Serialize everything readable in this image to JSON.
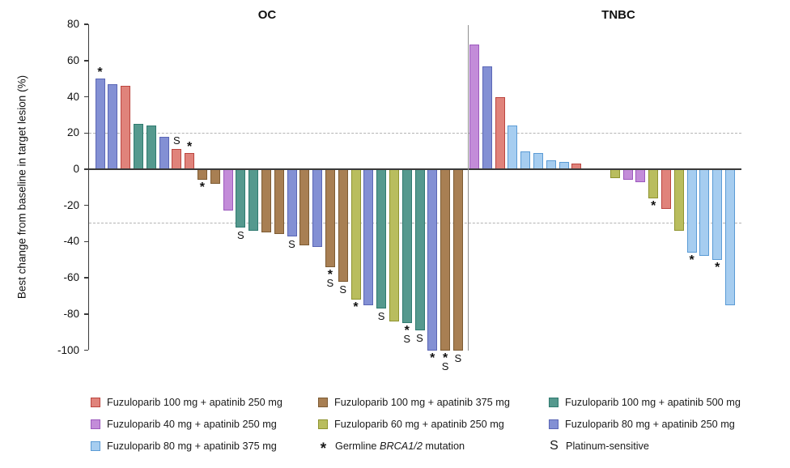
{
  "figure": {
    "ylabel": "Best change from baseline in target lesion (%)"
  },
  "colors": {
    "red": {
      "fill": "#e0837b",
      "border": "#bb453f"
    },
    "brown": {
      "fill": "#a87f53",
      "border": "#7d5b33"
    },
    "teal": {
      "fill": "#55998e",
      "border": "#2f7a6f"
    },
    "purple": {
      "fill": "#c38cd9",
      "border": "#9c59bd"
    },
    "olive": {
      "fill": "#b9bd5e",
      "border": "#8f9430"
    },
    "blueviolet": {
      "fill": "#8390d4",
      "border": "#5a66b5"
    },
    "lightblue": {
      "fill": "#a6cdf0",
      "border": "#5b9bd5"
    }
  },
  "chart_data": {
    "type": "bar",
    "ylabel": "Best change from baseline in target lesion (%)",
    "ylim": [
      -100,
      80
    ],
    "yticks": [
      80,
      60,
      40,
      20,
      0,
      -20,
      -40,
      -60,
      -80,
      -100
    ],
    "reference_lines_pct": [
      20,
      -30
    ],
    "grid": false,
    "marker_meanings": {
      "*": "Germline BRCA1/2 mutation",
      "S": "Platinum-sensitive"
    },
    "panels": [
      {
        "title": "OC",
        "bars": [
          {
            "v": 50,
            "c": "blueviolet",
            "m": [
              "*"
            ]
          },
          {
            "v": 47,
            "c": "blueviolet"
          },
          {
            "v": 46,
            "c": "red"
          },
          {
            "v": 25,
            "c": "teal"
          },
          {
            "v": 24,
            "c": "teal"
          },
          {
            "v": 18,
            "c": "blueviolet"
          },
          {
            "v": 11,
            "c": "red",
            "m": [
              "S"
            ]
          },
          {
            "v": 9,
            "c": "red",
            "m": [
              "*"
            ]
          },
          {
            "v": -6,
            "c": "brown",
            "m": [
              "*"
            ]
          },
          {
            "v": -8,
            "c": "brown"
          },
          {
            "v": -23,
            "c": "purple"
          },
          {
            "v": -32,
            "c": "teal",
            "m": [
              "S"
            ]
          },
          {
            "v": -34,
            "c": "teal"
          },
          {
            "v": -35,
            "c": "brown"
          },
          {
            "v": -36,
            "c": "brown"
          },
          {
            "v": -37,
            "c": "blueviolet",
            "m": [
              "S"
            ]
          },
          {
            "v": -42,
            "c": "brown"
          },
          {
            "v": -43,
            "c": "blueviolet"
          },
          {
            "v": -54,
            "c": "brown",
            "m": [
              "*",
              "S"
            ]
          },
          {
            "v": -62,
            "c": "brown",
            "m": [
              "S"
            ]
          },
          {
            "v": -72,
            "c": "olive",
            "m": [
              "*"
            ]
          },
          {
            "v": -75,
            "c": "blueviolet"
          },
          {
            "v": -77,
            "c": "teal",
            "m": [
              "S"
            ]
          },
          {
            "v": -84,
            "c": "olive"
          },
          {
            "v": -85,
            "c": "teal",
            "m": [
              "*",
              "S"
            ]
          },
          {
            "v": -89,
            "c": "teal",
            "m": [
              "S"
            ]
          },
          {
            "v": -100,
            "c": "blueviolet",
            "m": [
              "*"
            ]
          },
          {
            "v": -100,
            "c": "brown",
            "m": [
              "*",
              "S"
            ]
          },
          {
            "v": -100,
            "c": "brown",
            "m": [
              "S"
            ]
          }
        ]
      },
      {
        "title": "TNBC",
        "bars": [
          {
            "v": 69,
            "c": "purple"
          },
          {
            "v": 57,
            "c": "blueviolet"
          },
          {
            "v": 40,
            "c": "red"
          },
          {
            "v": 24,
            "c": "lightblue"
          },
          {
            "v": 10,
            "c": "lightblue"
          },
          {
            "v": 9,
            "c": "lightblue"
          },
          {
            "v": 5,
            "c": "lightblue"
          },
          {
            "v": 4,
            "c": "lightblue"
          },
          {
            "v": 3,
            "c": "red"
          },
          {
            "v": 0,
            "c": null
          },
          {
            "v": 0,
            "c": null
          },
          {
            "v": -5,
            "c": "olive"
          },
          {
            "v": -6,
            "c": "purple"
          },
          {
            "v": -7,
            "c": "purple"
          },
          {
            "v": -16,
            "c": "olive",
            "m": [
              "*"
            ]
          },
          {
            "v": -22,
            "c": "red"
          },
          {
            "v": -34,
            "c": "olive"
          },
          {
            "v": -46,
            "c": "lightblue",
            "m": [
              "*"
            ]
          },
          {
            "v": -48,
            "c": "lightblue"
          },
          {
            "v": -50,
            "c": "lightblue",
            "m": [
              "*"
            ]
          },
          {
            "v": -75,
            "c": "lightblue"
          }
        ]
      }
    ]
  },
  "legend": {
    "items": [
      {
        "type": "swatch",
        "color": "red",
        "label": "Fuzuloparib 100 mg + apatinib 250 mg"
      },
      {
        "type": "swatch",
        "color": "brown",
        "label": "Fuzuloparib 100 mg + apatinib 375 mg"
      },
      {
        "type": "swatch",
        "color": "teal",
        "label": "Fuzuloparib 100 mg + apatinib 500 mg"
      },
      {
        "type": "swatch",
        "color": "purple",
        "label": "Fuzuloparib 40 mg + apatinib 250 mg"
      },
      {
        "type": "swatch",
        "color": "olive",
        "label": "Fuzuloparib 60 mg + apatinib 250 mg"
      },
      {
        "type": "swatch",
        "color": "blueviolet",
        "label": "Fuzuloparib 80 mg + apatinib 250 mg"
      },
      {
        "type": "swatch",
        "color": "lightblue",
        "label": "Fuzuloparib 80 mg + apatinib 375 mg"
      },
      {
        "type": "symbol",
        "symbol": "*",
        "parts": [
          {
            "text": "Germline "
          },
          {
            "text": "BRCA1/2",
            "italic": true
          },
          {
            "text": " mutation"
          }
        ]
      },
      {
        "type": "symbol",
        "symbol": "S",
        "parts": [
          {
            "text": "Platinum-sensitive"
          }
        ]
      }
    ]
  }
}
